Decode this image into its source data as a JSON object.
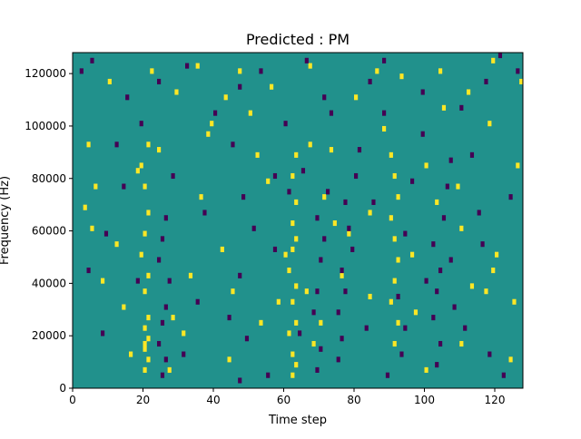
{
  "chart_data": {
    "type": "heatmap",
    "title": "Predicted : PM",
    "xlabel": "Time step",
    "ylabel": "Frequency (Hz)",
    "xlim": [
      0,
      128
    ],
    "ylim": [
      0,
      128000
    ],
    "x_ticks": [
      0,
      20,
      40,
      60,
      80,
      100,
      120
    ],
    "y_ticks": [
      0,
      20000,
      40000,
      60000,
      80000,
      100000,
      120000
    ],
    "y_tick_labels": [
      "0",
      "20000",
      "40000",
      "60000",
      "80000",
      "100000",
      "120000"
    ],
    "n_time_steps": 128,
    "n_freq_bins": 64,
    "colors": {
      "background": "#21918c",
      "high": "#fde725",
      "low": "#440154"
    },
    "cells_high": [
      [
        20,
        3
      ],
      [
        20,
        7
      ],
      [
        20,
        8
      ],
      [
        20,
        11
      ],
      [
        21,
        5
      ],
      [
        21,
        9
      ],
      [
        21,
        13
      ],
      [
        20,
        18
      ],
      [
        21,
        21
      ],
      [
        19,
        25
      ],
      [
        20,
        29
      ],
      [
        21,
        33
      ],
      [
        20,
        38
      ],
      [
        19,
        42
      ],
      [
        21,
        46
      ],
      [
        62,
        2
      ],
      [
        63,
        4
      ],
      [
        62,
        6
      ],
      [
        61,
        10
      ],
      [
        63,
        12
      ],
      [
        62,
        16
      ],
      [
        63,
        19
      ],
      [
        61,
        22
      ],
      [
        62,
        26
      ],
      [
        63,
        28
      ],
      [
        62,
        31
      ],
      [
        63,
        35
      ],
      [
        62,
        40
      ],
      [
        63,
        44
      ],
      [
        91,
        8
      ],
      [
        92,
        12
      ],
      [
        90,
        16
      ],
      [
        91,
        20
      ],
      [
        92,
        24
      ],
      [
        91,
        28
      ],
      [
        90,
        32
      ],
      [
        92,
        36
      ],
      [
        91,
        40
      ],
      [
        90,
        44
      ],
      [
        10,
        58
      ],
      [
        22,
        60
      ],
      [
        29,
        56
      ],
      [
        35,
        61
      ],
      [
        43,
        55
      ],
      [
        47,
        60
      ],
      [
        56,
        57
      ],
      [
        67,
        61
      ],
      [
        93,
        59
      ],
      [
        104,
        60
      ],
      [
        112,
        56
      ],
      [
        119,
        62
      ],
      [
        127,
        58
      ],
      [
        4,
        46
      ],
      [
        18,
        41
      ],
      [
        36,
        36
      ],
      [
        55,
        39
      ],
      [
        73,
        45
      ],
      [
        100,
        42
      ],
      [
        109,
        38
      ],
      [
        126,
        42
      ],
      [
        8,
        20
      ],
      [
        14,
        15
      ],
      [
        31,
        10
      ],
      [
        45,
        18
      ],
      [
        70,
        12
      ],
      [
        84,
        17
      ],
      [
        97,
        14
      ],
      [
        113,
        19
      ],
      [
        125,
        16
      ],
      [
        120,
        25
      ],
      [
        119,
        22
      ],
      [
        117,
        18
      ],
      [
        110,
        30
      ],
      [
        103,
        35
      ],
      [
        84,
        33
      ],
      [
        78,
        29
      ],
      [
        74,
        31
      ],
      [
        60,
        25
      ],
      [
        58,
        16
      ],
      [
        42,
        26
      ],
      [
        33,
        21
      ],
      [
        28,
        13
      ],
      [
        16,
        6
      ],
      [
        5,
        30
      ],
      [
        3,
        34
      ],
      [
        24,
        45
      ],
      [
        39,
        50
      ],
      [
        50,
        52
      ],
      [
        67,
        46
      ],
      [
        88,
        49
      ],
      [
        105,
        53
      ],
      [
        118,
        50
      ],
      [
        80,
        55
      ],
      [
        53,
        12
      ],
      [
        68,
        8
      ],
      [
        44,
        5
      ],
      [
        27,
        3
      ],
      [
        12,
        27
      ],
      [
        6,
        38
      ],
      [
        38,
        48
      ],
      [
        86,
        60
      ],
      [
        96,
        25
      ],
      [
        110,
        8
      ],
      [
        124,
        5
      ],
      [
        52,
        44
      ],
      [
        71,
        36
      ],
      [
        66,
        18
      ],
      [
        76,
        21
      ],
      [
        100,
        3
      ]
    ],
    "cells_low": [
      [
        25,
        2
      ],
      [
        26,
        5
      ],
      [
        24,
        8
      ],
      [
        25,
        12
      ],
      [
        26,
        15
      ],
      [
        27,
        20
      ],
      [
        24,
        24
      ],
      [
        25,
        28
      ],
      [
        26,
        32
      ],
      [
        47,
        1
      ],
      [
        49,
        9
      ],
      [
        47,
        21
      ],
      [
        48,
        36
      ],
      [
        69,
        3
      ],
      [
        70,
        7
      ],
      [
        68,
        14
      ],
      [
        69,
        18
      ],
      [
        70,
        24
      ],
      [
        71,
        28
      ],
      [
        69,
        32
      ],
      [
        72,
        37
      ],
      [
        75,
        5
      ],
      [
        76,
        9
      ],
      [
        75,
        14
      ],
      [
        77,
        18
      ],
      [
        76,
        22
      ],
      [
        79,
        26
      ],
      [
        78,
        30
      ],
      [
        77,
        35
      ],
      [
        80,
        40
      ],
      [
        93,
        6
      ],
      [
        94,
        11
      ],
      [
        92,
        17
      ],
      [
        103,
        4
      ],
      [
        104,
        8
      ],
      [
        102,
        13
      ],
      [
        103,
        18
      ],
      [
        104,
        22
      ],
      [
        102,
        27
      ],
      [
        105,
        32
      ],
      [
        106,
        38
      ],
      [
        107,
        43
      ],
      [
        88,
        52
      ],
      [
        84,
        58
      ],
      [
        66,
        62
      ],
      [
        71,
        55
      ],
      [
        53,
        60
      ],
      [
        47,
        57
      ],
      [
        40,
        52
      ],
      [
        32,
        61
      ],
      [
        24,
        58
      ],
      [
        15,
        55
      ],
      [
        5,
        62
      ],
      [
        2,
        60
      ],
      [
        117,
        58
      ],
      [
        121,
        63
      ],
      [
        126,
        60
      ],
      [
        110,
        53
      ],
      [
        99,
        56
      ],
      [
        88,
        62
      ],
      [
        60,
        50
      ],
      [
        45,
        46
      ],
      [
        14,
        38
      ],
      [
        9,
        29
      ],
      [
        4,
        22
      ],
      [
        12,
        46
      ],
      [
        28,
        40
      ],
      [
        37,
        33
      ],
      [
        51,
        30
      ],
      [
        61,
        37
      ],
      [
        85,
        35
      ],
      [
        96,
        39
      ],
      [
        113,
        44
      ],
      [
        124,
        36
      ],
      [
        116,
        27
      ],
      [
        108,
        15
      ],
      [
        111,
        11
      ],
      [
        118,
        6
      ],
      [
        122,
        2
      ],
      [
        83,
        11
      ],
      [
        55,
        2
      ],
      [
        35,
        16
      ],
      [
        18,
        20
      ],
      [
        8,
        10
      ],
      [
        57,
        26
      ],
      [
        65,
        41
      ],
      [
        73,
        52
      ],
      [
        81,
        45
      ],
      [
        99,
        48
      ],
      [
        115,
        33
      ],
      [
        44,
        13
      ],
      [
        31,
        6
      ],
      [
        94,
        29
      ],
      [
        100,
        20
      ],
      [
        107,
        24
      ],
      [
        89,
        2
      ],
      [
        64,
        10
      ],
      [
        57,
        40
      ],
      [
        19,
        50
      ]
    ]
  }
}
